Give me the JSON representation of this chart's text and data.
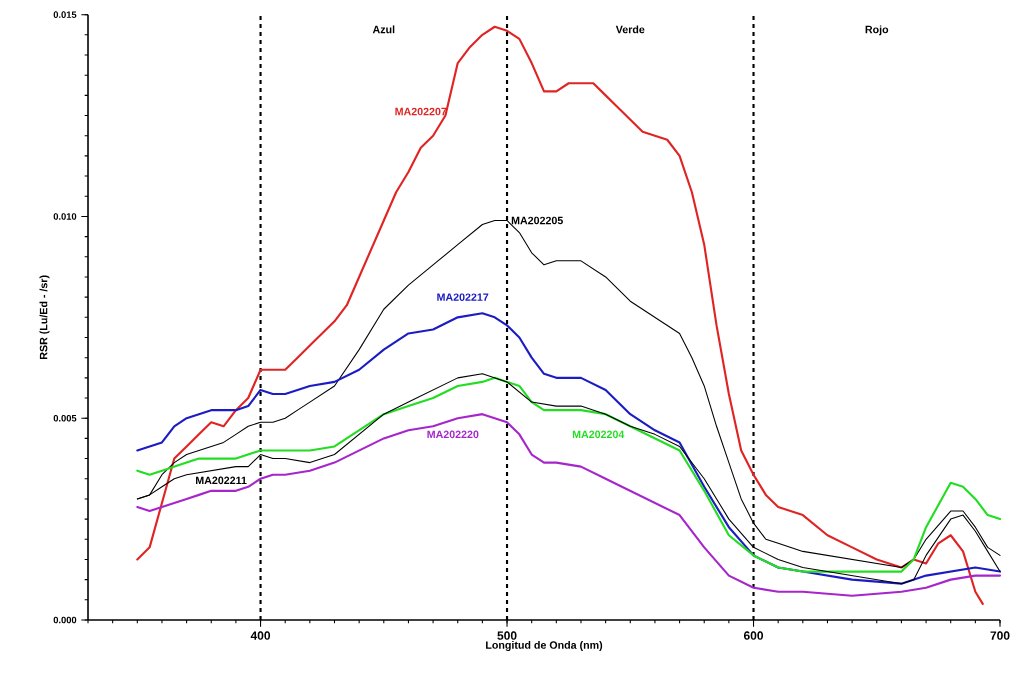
{
  "chart_data": {
    "type": "line",
    "xlabel": "Longitud de Onda (nm)",
    "ylabel": "RSR (Lu/Ed - /sr)",
    "xlim": [
      330,
      700
    ],
    "ylim": [
      0,
      0.015
    ],
    "xticks": [
      400,
      500,
      600,
      700
    ],
    "yticks": [
      {
        "value": 0,
        "label": "0.000"
      },
      {
        "value": 0.005,
        "label": "0.005"
      },
      {
        "value": 0.01,
        "label": "0.010"
      },
      {
        "value": 0.015,
        "label": "0.015"
      }
    ],
    "line_style": "solid",
    "ref_lines": [
      {
        "axis": "x",
        "value": 400,
        "color": "#000000",
        "line_style": "dashed"
      },
      {
        "axis": "x",
        "value": 500,
        "color": "#000000",
        "line_style": "dashed"
      },
      {
        "axis": "x",
        "value": 600,
        "color": "#000000",
        "line_style": "dashed"
      }
    ],
    "annotations": [
      "Azul",
      "Verde",
      "Rojo"
    ],
    "series": [
      {
        "name": "MA202207",
        "color": "#e02424",
        "x": [
          350,
          355,
          360,
          365,
          370,
          375,
          380,
          385,
          390,
          395,
          400,
          405,
          410,
          415,
          420,
          430,
          435,
          440,
          450,
          455,
          460,
          465,
          470,
          475,
          480,
          485,
          490,
          495,
          500,
          505,
          510,
          515,
          520,
          525,
          530,
          535,
          540,
          545,
          550,
          555,
          560,
          565,
          570,
          575,
          580,
          585,
          590,
          595,
          600,
          605,
          610,
          620,
          630,
          640,
          650,
          660,
          665,
          670,
          675,
          680,
          685,
          690,
          693
        ],
        "values": [
          0.0015,
          0.0018,
          0.0029,
          0.004,
          0.0043,
          0.0046,
          0.0049,
          0.0048,
          0.0052,
          0.0055,
          0.0062,
          0.0062,
          0.0062,
          0.0065,
          0.0068,
          0.0074,
          0.0078,
          0.0085,
          0.0099,
          0.0106,
          0.0111,
          0.0117,
          0.012,
          0.0125,
          0.0138,
          0.0142,
          0.0145,
          0.0147,
          0.0146,
          0.0144,
          0.0138,
          0.0131,
          0.0131,
          0.0133,
          0.0133,
          0.0133,
          0.013,
          0.0127,
          0.0124,
          0.0121,
          0.012,
          0.0119,
          0.0115,
          0.0106,
          0.0093,
          0.0073,
          0.0056,
          0.0042,
          0.0036,
          0.0031,
          0.0028,
          0.0026,
          0.0021,
          0.0018,
          0.0015,
          0.0013,
          0.0015,
          0.0014,
          0.0019,
          0.0021,
          0.0017,
          0.0007,
          0.0004
        ]
      },
      {
        "name": "MA202205",
        "color": "#000000",
        "x": [
          350,
          355,
          360,
          365,
          370,
          375,
          380,
          385,
          390,
          395,
          400,
          405,
          410,
          415,
          420,
          430,
          440,
          450,
          460,
          470,
          480,
          490,
          495,
          500,
          505,
          510,
          515,
          520,
          530,
          540,
          550,
          560,
          570,
          575,
          580,
          585,
          590,
          595,
          600,
          605,
          610,
          620,
          640,
          660,
          665,
          670,
          680,
          685,
          690,
          695,
          700
        ],
        "values": [
          0.003,
          0.0031,
          0.0036,
          0.0039,
          0.0041,
          0.0042,
          0.0043,
          0.0044,
          0.0046,
          0.0048,
          0.0049,
          0.0049,
          0.005,
          0.0052,
          0.0054,
          0.0058,
          0.0067,
          0.0077,
          0.0083,
          0.0088,
          0.0093,
          0.0098,
          0.0099,
          0.0099,
          0.0096,
          0.0091,
          0.0088,
          0.0089,
          0.0089,
          0.0085,
          0.0079,
          0.0075,
          0.0071,
          0.0065,
          0.0058,
          0.0048,
          0.0039,
          0.003,
          0.0024,
          0.002,
          0.0019,
          0.0017,
          0.0015,
          0.0013,
          0.0015,
          0.002,
          0.0027,
          0.0027,
          0.0023,
          0.0018,
          0.0016
        ]
      },
      {
        "name": "MA202217",
        "color": "#1c1cc4",
        "x": [
          350,
          355,
          360,
          365,
          370,
          375,
          380,
          385,
          390,
          395,
          400,
          405,
          410,
          420,
          430,
          440,
          450,
          460,
          470,
          480,
          490,
          495,
          500,
          505,
          510,
          515,
          520,
          530,
          540,
          550,
          560,
          570,
          580,
          590,
          600,
          610,
          620,
          640,
          660,
          670,
          680,
          690,
          700
        ],
        "values": [
          0.0042,
          0.0043,
          0.0044,
          0.0048,
          0.005,
          0.0051,
          0.0052,
          0.0052,
          0.0052,
          0.0053,
          0.0057,
          0.0056,
          0.0056,
          0.0058,
          0.0059,
          0.0062,
          0.0067,
          0.0071,
          0.0072,
          0.0075,
          0.0076,
          0.0075,
          0.0073,
          0.007,
          0.0065,
          0.0061,
          0.006,
          0.006,
          0.0057,
          0.0051,
          0.0047,
          0.0044,
          0.0033,
          0.0023,
          0.0016,
          0.0013,
          0.0012,
          0.001,
          0.0009,
          0.0011,
          0.0012,
          0.0013,
          0.0012
        ]
      },
      {
        "name": "MA202204",
        "color": "#22dd22",
        "x": [
          350,
          355,
          360,
          365,
          370,
          375,
          380,
          390,
          400,
          410,
          420,
          430,
          440,
          450,
          460,
          470,
          480,
          490,
          495,
          500,
          505,
          510,
          515,
          520,
          530,
          540,
          550,
          560,
          570,
          580,
          590,
          600,
          610,
          620,
          640,
          660,
          665,
          670,
          680,
          685,
          690,
          695,
          700
        ],
        "values": [
          0.0037,
          0.0036,
          0.0037,
          0.0038,
          0.0039,
          0.004,
          0.004,
          0.004,
          0.0042,
          0.0042,
          0.0042,
          0.0043,
          0.0047,
          0.0051,
          0.0053,
          0.0055,
          0.0058,
          0.0059,
          0.006,
          0.0059,
          0.0058,
          0.0054,
          0.0052,
          0.0052,
          0.0052,
          0.0051,
          0.0048,
          0.0045,
          0.0042,
          0.0032,
          0.0021,
          0.0016,
          0.0013,
          0.0012,
          0.0012,
          0.0012,
          0.0015,
          0.0023,
          0.0034,
          0.0033,
          0.003,
          0.0026,
          0.0025
        ]
      },
      {
        "name": "MA202220",
        "color": "#a626cc",
        "x": [
          350,
          355,
          360,
          365,
          370,
          375,
          380,
          390,
          395,
          400,
          405,
          410,
          420,
          430,
          440,
          450,
          460,
          470,
          480,
          490,
          495,
          500,
          505,
          510,
          515,
          520,
          530,
          540,
          550,
          560,
          570,
          580,
          590,
          600,
          610,
          620,
          640,
          660,
          670,
          680,
          690,
          700
        ],
        "values": [
          0.0028,
          0.0027,
          0.0028,
          0.0029,
          0.003,
          0.0031,
          0.0032,
          0.0032,
          0.0033,
          0.0035,
          0.0036,
          0.0036,
          0.0037,
          0.0039,
          0.0042,
          0.0045,
          0.0047,
          0.0048,
          0.005,
          0.0051,
          0.005,
          0.0049,
          0.0046,
          0.0041,
          0.0039,
          0.0039,
          0.0038,
          0.0035,
          0.0032,
          0.0029,
          0.0026,
          0.0018,
          0.0011,
          0.0008,
          0.0007,
          0.0007,
          0.0006,
          0.0007,
          0.0008,
          0.001,
          0.0011,
          0.0011
        ]
      },
      {
        "name": "MA202211",
        "color": "#000000",
        "x": [
          350,
          355,
          360,
          365,
          370,
          380,
          390,
          395,
          400,
          405,
          410,
          420,
          430,
          440,
          450,
          460,
          470,
          480,
          490,
          500,
          510,
          520,
          530,
          540,
          550,
          560,
          570,
          580,
          590,
          600,
          610,
          620,
          640,
          660,
          665,
          670,
          680,
          685,
          690,
          695,
          700
        ],
        "values": [
          0.003,
          0.0031,
          0.0033,
          0.0035,
          0.0036,
          0.0037,
          0.0038,
          0.0038,
          0.0041,
          0.004,
          0.004,
          0.0039,
          0.0041,
          0.0046,
          0.0051,
          0.0054,
          0.0057,
          0.006,
          0.0061,
          0.0059,
          0.0054,
          0.0053,
          0.0053,
          0.0051,
          0.0048,
          0.0046,
          0.0043,
          0.0035,
          0.0025,
          0.0018,
          0.0015,
          0.0013,
          0.0011,
          0.0009,
          0.001,
          0.0016,
          0.0025,
          0.0026,
          0.0022,
          0.0017,
          0.0012
        ]
      }
    ]
  }
}
